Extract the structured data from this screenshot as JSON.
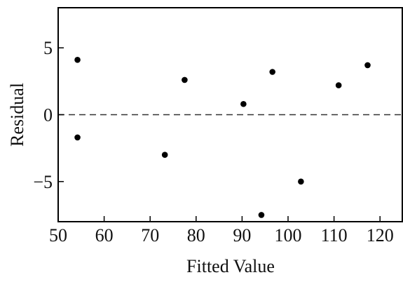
{
  "chart_data": {
    "type": "scatter",
    "title": "",
    "xlabel": "Fitted Value",
    "ylabel": "Residual",
    "xlim": [
      50,
      125
    ],
    "ylim": [
      -8,
      8
    ],
    "xticks": [
      50,
      60,
      70,
      80,
      90,
      100,
      110,
      120
    ],
    "yticks": [
      -5,
      0,
      5
    ],
    "ytick_labels": [
      "−5",
      "0",
      "5"
    ],
    "reference_line": {
      "y": 0,
      "style": "dashed"
    },
    "grid": false,
    "points": [
      {
        "x": 54.2,
        "y": 4.1
      },
      {
        "x": 54.2,
        "y": -1.7
      },
      {
        "x": 73.2,
        "y": -3.0
      },
      {
        "x": 77.5,
        "y": 2.6
      },
      {
        "x": 90.3,
        "y": 0.8
      },
      {
        "x": 94.2,
        "y": -7.5
      },
      {
        "x": 96.6,
        "y": 3.2
      },
      {
        "x": 102.8,
        "y": -5.0
      },
      {
        "x": 111.0,
        "y": 2.2
      },
      {
        "x": 117.3,
        "y": 3.7
      }
    ],
    "colors": {
      "marker": "#000000",
      "axis": "#000000",
      "reference": "#333333"
    }
  }
}
